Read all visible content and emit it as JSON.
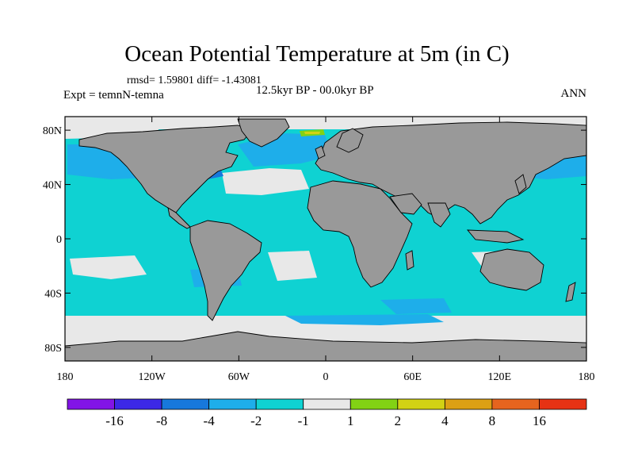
{
  "title": "Ocean Potential Temperature at 5m (in C)",
  "stats_line": "rmsd= 1.59801 diff= -1.43081",
  "experiment_label": "Expt = temnN-temna",
  "time_period": "12.5kyr BP - 00.0kyr BP",
  "season": "ANN",
  "colors": {
    "land": "#999999",
    "no_change": "#e8e8e8",
    "cool_1_2": "#0fd2d2",
    "cool_2_4": "#1eaeea",
    "cool_4_8": "#1778dc",
    "warm_1_2": "#82d214",
    "warm_2_4": "#d2d214"
  },
  "map": {
    "projection": "cylindrical equidistant",
    "longitude_range": [
      -180,
      180
    ],
    "latitude_range": [
      -90,
      90
    ],
    "y_tick_labels": [
      "80N",
      "40N",
      "0",
      "40S",
      "80S"
    ],
    "y_tick_lats": [
      80,
      40,
      0,
      -40,
      -80
    ],
    "x_tick_labels": [
      "180",
      "120W",
      "60W",
      "0",
      "60E",
      "120E",
      "180"
    ],
    "x_tick_lons": [
      -180,
      -120,
      -60,
      0,
      60,
      120,
      180
    ]
  },
  "colorbar": {
    "boundaries": [
      -16,
      -8,
      -4,
      -2,
      -1,
      1,
      2,
      4,
      8,
      16
    ],
    "labels": [
      "-16",
      "-8",
      "-4",
      "-2",
      "-1",
      "1",
      "2",
      "4",
      "8",
      "16"
    ],
    "colors": [
      "#8214e6",
      "#3c28e6",
      "#1778dc",
      "#1eaeea",
      "#0fd2d2",
      "#e8e8e8",
      "#82d214",
      "#d2d214",
      "#dca014",
      "#e6641e",
      "#e63214"
    ]
  }
}
